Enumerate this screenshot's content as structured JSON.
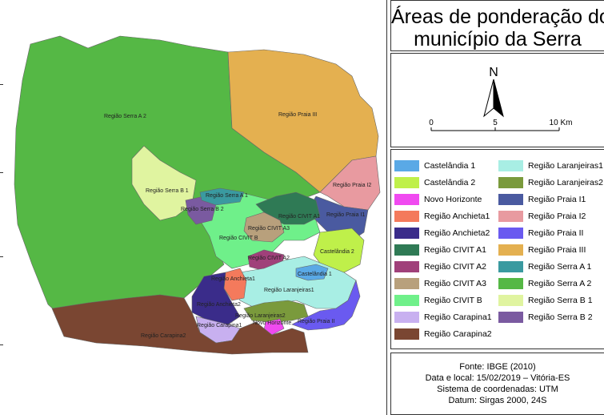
{
  "title": {
    "line1": "Áreas de ponderação do",
    "line2": "município da Serra"
  },
  "north": {
    "letter": "N"
  },
  "scale": {
    "labels": [
      "0",
      "5",
      "10 Km"
    ]
  },
  "legend": [
    {
      "label": "Castelândia 1",
      "color": "#5aa9e6"
    },
    {
      "label": "Castelândia 2",
      "color": "#bff04a"
    },
    {
      "label": "Novo Horizonte",
      "color": "#f04af0"
    },
    {
      "label": "Região Anchieta1",
      "color": "#f47a5c"
    },
    {
      "label": "Região Anchieta2",
      "color": "#3a2c8a"
    },
    {
      "label": "Região CIVIT A1",
      "color": "#2f7a55"
    },
    {
      "label": "Região CIVIT A2",
      "color": "#a0407a"
    },
    {
      "label": "Região CIVIT A3",
      "color": "#b8a07c"
    },
    {
      "label": "Região CIVIT B",
      "color": "#6ff08a"
    },
    {
      "label": "Região Carapina1",
      "color": "#c8b0f0"
    },
    {
      "label": "Região Carapina2",
      "color": "#7a4632"
    },
    {
      "label": "Região Laranjeiras1",
      "color": "#a8eee4"
    },
    {
      "label": "Região Laranjeiras2",
      "color": "#7a9a3c"
    },
    {
      "label": "Região Praia I1",
      "color": "#4a5aa0"
    },
    {
      "label": "Região Praia I2",
      "color": "#e89aa0"
    },
    {
      "label": "Região Praia II",
      "color": "#6a5af0"
    },
    {
      "label": "Região Praia III",
      "color": "#e4b050"
    },
    {
      "label": "Região Serra A 1",
      "color": "#3a9aa0"
    },
    {
      "label": "Região Serra A 2",
      "color": "#55b845"
    },
    {
      "label": "Região Serra B 1",
      "color": "#e0f4a0"
    },
    {
      "label": "Região Serra B 2",
      "color": "#7a5aa0"
    }
  ],
  "map_labels": [
    "Região Serra A 2",
    "Região Praia III",
    "Região Praia I2",
    "Região Serra B 1",
    "Região Serra A 1",
    "Região Serra B 2",
    "Região CIVIT A1",
    "Região Praia I1",
    "Região CIVIT A3",
    "Região CIVIT B",
    "Castelândia 2",
    "Região CIVIT A2",
    "Castelândia 1",
    "Região Anchieta1",
    "Região Laranjeiras1",
    "Região Anchieta2",
    "Região Laranjeiras2",
    "Região Carapina1",
    "Novo Horizonte",
    "Região Praia II",
    "Região Carapina2"
  ],
  "source": {
    "line1": "Fonte: IBGE (2010)",
    "line2": "Data e local: 15/02/2019 – Vitória-ES",
    "line3": "Sistema de coordenadas: UTM",
    "line4": "Datum: Sirgas 2000, 24S"
  }
}
